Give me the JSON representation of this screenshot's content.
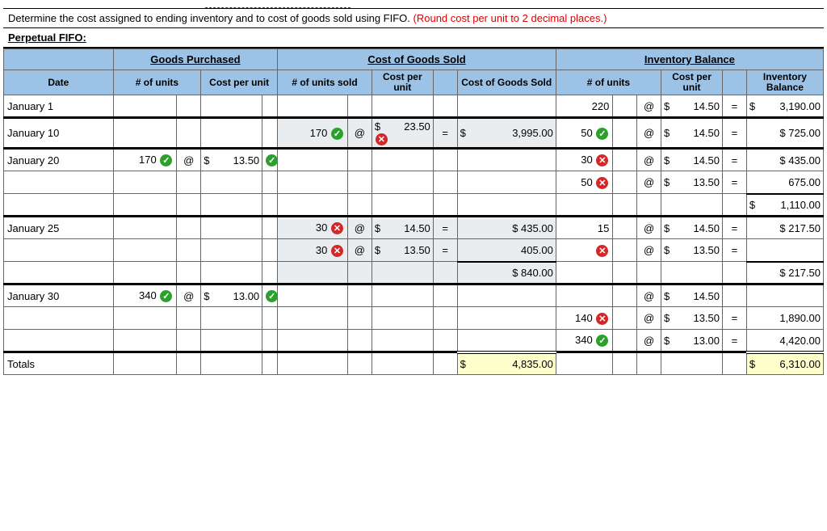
{
  "instruction_plain": "Determine the cost assigned to ending inventory and to cost of goods sold using FIFO. ",
  "instruction_red": "(Round cost per unit to 2 decimal places.)",
  "subtitle": "Perpetual FIFO:",
  "group_headers": {
    "gp": "Goods Purchased",
    "cogs": "Cost of Goods Sold",
    "ib": "Inventory Balance"
  },
  "sub_headers": {
    "date": "Date",
    "gp_units": "# of units",
    "cpu": "Cost per unit",
    "cogs_units": "# of units sold",
    "cogs_total": "Cost of Goods Sold",
    "ib_units": "# of units",
    "ib_total": "Inventory Balance"
  },
  "rows": [
    {
      "date": "January 1",
      "ib_u": "220",
      "ib_at": "@",
      "ib_c": "14.50",
      "ib_cd": "$",
      "ib_eq": "=",
      "ib_t": "3,190.00",
      "ib_td": "$"
    },
    {
      "btop": true,
      "date": "January 10",
      "cogs_u": "170",
      "cogs_um": "ok",
      "cogs_at": "@",
      "cogs_c": "23.50",
      "cogs_cd": "$",
      "cogs_cm": "bad",
      "cogs_eq": "=",
      "cogs_t": "3,995.00",
      "cogs_td": "$",
      "ib_u": "50",
      "ib_um": "ok",
      "ib_at": "@",
      "ib_c": "14.50",
      "ib_cd": "$",
      "ib_eq": "=",
      "ib_t": "$ 725.00",
      "shade": true
    },
    {
      "btop": true,
      "date": "January 20",
      "gp_u": "170",
      "gp_um": "ok",
      "gp_at": "@",
      "gp_c": "13.50",
      "gp_cd": "$",
      "gp_cm": "ok",
      "ib_u": "30",
      "ib_um": "bad",
      "ib_at": "@",
      "ib_c": "14.50",
      "ib_cd": "$",
      "ib_eq": "=",
      "ib_t": "$ 435.00"
    },
    {
      "ib_u": "50",
      "ib_um": "bad",
      "ib_at": "@",
      "ib_c": "13.50",
      "ib_cd": "$",
      "ib_eq": "=",
      "ib_t": "675.00"
    },
    {
      "ib_t": "1,110.00",
      "ib_td": "$",
      "ib_tot": true
    },
    {
      "btop": true,
      "date": "January 25",
      "cogs_u": "30",
      "cogs_um": "bad",
      "cogs_at": "@",
      "cogs_c": "14.50",
      "cogs_cd": "$",
      "cogs_eq": "=",
      "cogs_t": "$  435.00",
      "ib_u": "15",
      "ib_at": "@",
      "ib_c": "14.50",
      "ib_cd": "$",
      "ib_eq": "=",
      "ib_t": "$ 217.50",
      "shade": true
    },
    {
      "cogs_u": "30",
      "cogs_um": "bad",
      "cogs_at": "@",
      "cogs_c": "13.50",
      "cogs_cd": "$",
      "cogs_eq": "=",
      "cogs_t": "405.00",
      "ib_um": "bad",
      "ib_at": "@",
      "ib_c": "13.50",
      "ib_cd": "$",
      "ib_eq": "=",
      "shade": true
    },
    {
      "cogs_t": "$  840.00",
      "cogs_tot": true,
      "ib_t": "$ 217.50",
      "ib_tot": true,
      "shade": true
    },
    {
      "btop": true,
      "date": "January 30",
      "gp_u": "340",
      "gp_um": "ok",
      "gp_at": "@",
      "gp_c": "13.00",
      "gp_cd": "$",
      "gp_cm": "ok",
      "ib_at": "@",
      "ib_c": "14.50",
      "ib_cd": "$"
    },
    {
      "ib_u": "140",
      "ib_um": "bad",
      "ib_at": "@",
      "ib_c": "13.50",
      "ib_cd": "$",
      "ib_eq": "=",
      "ib_t": "1,890.00"
    },
    {
      "ib_u": "340",
      "ib_um": "ok",
      "ib_at": "@",
      "ib_c": "13.00",
      "ib_cd": "$",
      "ib_eq": "=",
      "ib_t": "4,420.00"
    },
    {
      "btop": true,
      "date": "Totals",
      "cogs_t": "4,835.00",
      "cogs_td": "$",
      "ib_t": "6,310.00",
      "ib_td": "$",
      "yellow": true,
      "dbl": true
    }
  ]
}
